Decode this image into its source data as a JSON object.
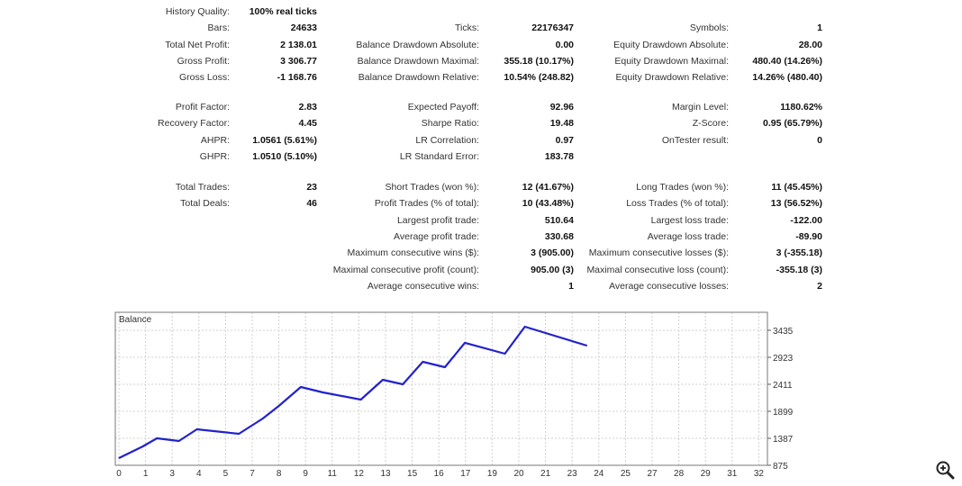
{
  "sections": [
    [
      [
        [
          "History Quality:",
          "100% real ticks"
        ]
      ],
      [
        [
          "Bars:",
          "24633"
        ],
        [
          "Ticks:",
          "22176347"
        ],
        [
          "Symbols:",
          "1"
        ]
      ],
      [
        [
          "Total Net Profit:",
          "2 138.01"
        ],
        [
          "Balance Drawdown Absolute:",
          "0.00"
        ],
        [
          "Equity Drawdown Absolute:",
          "28.00"
        ]
      ],
      [
        [
          "Gross Profit:",
          "3 306.77"
        ],
        [
          "Balance Drawdown Maximal:",
          "355.18 (10.17%)"
        ],
        [
          "Equity Drawdown Maximal:",
          "480.40 (14.26%)"
        ]
      ],
      [
        [
          "Gross Loss:",
          "-1 168.76"
        ],
        [
          "Balance Drawdown Relative:",
          "10.54% (248.82)"
        ],
        [
          "Equity Drawdown Relative:",
          "14.26% (480.40)"
        ]
      ]
    ],
    [
      [
        [
          "Profit Factor:",
          "2.83"
        ],
        [
          "Expected Payoff:",
          "92.96"
        ],
        [
          "Margin Level:",
          "1180.62%"
        ]
      ],
      [
        [
          "Recovery Factor:",
          "4.45"
        ],
        [
          "Sharpe Ratio:",
          "19.48"
        ],
        [
          "Z-Score:",
          "0.95 (65.79%)"
        ]
      ],
      [
        [
          "AHPR:",
          "1.0561 (5.61%)"
        ],
        [
          "LR Correlation:",
          "0.97"
        ],
        [
          "OnTester result:",
          "0"
        ]
      ],
      [
        [
          "GHPR:",
          "1.0510 (5.10%)"
        ],
        [
          "LR Standard Error:",
          "183.78"
        ]
      ]
    ],
    [
      [
        [
          "Total Trades:",
          "23"
        ],
        [
          "Short Trades (won %):",
          "12 (41.67%)"
        ],
        [
          "Long Trades (won %):",
          "11 (45.45%)"
        ]
      ],
      [
        [
          "Total Deals:",
          "46"
        ],
        [
          "Profit Trades (% of total):",
          "10 (43.48%)"
        ],
        [
          "Loss Trades (% of total):",
          "13 (56.52%)"
        ]
      ],
      [
        null,
        [
          "Largest profit trade:",
          "510.64"
        ],
        [
          "Largest loss trade:",
          "-122.00"
        ]
      ],
      [
        null,
        [
          "Average profit trade:",
          "330.68"
        ],
        [
          "Average loss trade:",
          "-89.90"
        ]
      ],
      [
        null,
        [
          "Maximum consecutive wins ($):",
          "3 (905.00)"
        ],
        [
          "Maximum consecutive losses ($):",
          "3 (-355.18)"
        ]
      ],
      [
        null,
        [
          "Maximal consecutive profit (count):",
          "905.00 (3)"
        ],
        [
          "Maximal consecutive loss (count):",
          "-355.18 (3)"
        ]
      ],
      [
        null,
        [
          "Average consecutive wins:",
          "1"
        ],
        [
          "Average consecutive losses:",
          "2"
        ]
      ]
    ]
  ],
  "chart_data": {
    "type": "line",
    "title": "Balance",
    "xlim": [
      0,
      32
    ],
    "ylim": [
      875,
      3435
    ],
    "x_tick_labels": [
      "0",
      "1",
      "3",
      "4",
      "5",
      "7",
      "8",
      "9",
      "11",
      "12",
      "13",
      "15",
      "16",
      "17",
      "19",
      "20",
      "21",
      "23",
      "24",
      "25",
      "27",
      "28",
      "29",
      "31",
      "32"
    ],
    "y_tick_labels": [
      "875",
      "1387",
      "1899",
      "2411",
      "2923",
      "3435"
    ],
    "grid": true,
    "line_color": "#2222cc",
    "series": [
      {
        "name": "Balance",
        "x": [
          0,
          1.2,
          1.9,
          3.0,
          3.9,
          6.0,
          7.2,
          8.0,
          9.1,
          10.2,
          12.1,
          13.2,
          14.2,
          15.2,
          16.3,
          17.3,
          19.3,
          20.3,
          23.4
        ],
        "values": [
          1012,
          1233,
          1387,
          1336,
          1558,
          1472,
          1763,
          2002,
          2360,
          2258,
          2121,
          2497,
          2411,
          2838,
          2736,
          3197,
          2992,
          3504,
          3145
        ]
      }
    ]
  },
  "icons": {
    "zoom": "zoom-in-icon"
  }
}
